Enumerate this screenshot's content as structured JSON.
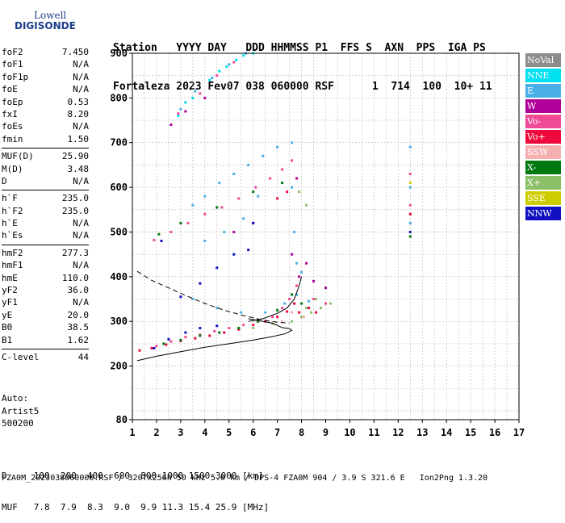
{
  "logo": {
    "line1": "Lowell",
    "line2": "DIGISONDE"
  },
  "header": {
    "line1": "Station   YYYY DAY   DDD HHMMSS P1  FFS S  AXN  PPS  IGA PS",
    "line2": "Fortaleza 2023 Fev07 038 060000 RSF      1  714  100  10+ 11"
  },
  "params": [
    {
      "group": [
        [
          "foF2",
          "7.450"
        ],
        [
          "foF1",
          "N/A"
        ],
        [
          "foF1p",
          "N/A"
        ],
        [
          "foE",
          "N/A"
        ],
        [
          "foEp",
          "0.53"
        ],
        [
          "fxI",
          "8.20"
        ],
        [
          "foEs",
          "N/A"
        ],
        [
          "fmin",
          "1.50"
        ]
      ]
    },
    {
      "group": [
        [
          "MUF(D)",
          "25.90"
        ],
        [
          "M(D)",
          "3.48"
        ],
        [
          "D",
          "N/A"
        ]
      ]
    },
    {
      "group": [
        [
          "h`F",
          "235.0"
        ],
        [
          "h`F2",
          "235.0"
        ],
        [
          "h`E",
          "N/A"
        ],
        [
          "h`Es",
          "N/A"
        ]
      ]
    },
    {
      "group": [
        [
          "hmF2",
          "277.3"
        ],
        [
          "hmF1",
          "N/A"
        ],
        [
          "hmE",
          "110.0"
        ],
        [
          "yF2",
          "36.0"
        ],
        [
          "yF1",
          "N/A"
        ],
        [
          "yE",
          "20.0"
        ],
        [
          "B0",
          "38.5"
        ],
        [
          "B1",
          "1.62"
        ]
      ]
    },
    {
      "group": [
        [
          "C-level",
          "44"
        ]
      ]
    }
  ],
  "auto": {
    "l1": "Auto:",
    "l2": "Artist5",
    "l3": "500200"
  },
  "legend": [
    {
      "label": "NoVal",
      "color": "#8c8c8c"
    },
    {
      "label": "NNE",
      "color": "#00e0f0"
    },
    {
      "label": "E",
      "color": "#4aaee8"
    },
    {
      "label": "W",
      "color": "#b0009a"
    },
    {
      "label": "Vo-",
      "color": "#f04a96"
    },
    {
      "label": "Vo+",
      "color": "#ee0a3c"
    },
    {
      "label": "SSW",
      "color": "#f4b0b0"
    },
    {
      "label": "X-",
      "color": "#007a10"
    },
    {
      "label": "X+",
      "color": "#8cc068"
    },
    {
      "label": "SSE",
      "color": "#cccc00"
    },
    {
      "label": "NNW",
      "color": "#1010c0"
    }
  ],
  "chart_data": {
    "type": "scatter",
    "xlim": [
      1,
      17
    ],
    "ylim": [
      80,
      900
    ],
    "x_ticks": [
      1,
      2,
      3,
      4,
      5,
      6,
      7,
      8,
      9,
      10,
      11,
      12,
      13,
      14,
      15,
      16,
      17
    ],
    "y_ticks": [
      80,
      200,
      300,
      400,
      500,
      600,
      700,
      800,
      900
    ],
    "grid": true,
    "series": [
      {
        "name": "NNE",
        "color": "#00e0f0",
        "points": [
          [
            2.9,
            760
          ],
          [
            3.5,
            800
          ],
          [
            4.2,
            840
          ],
          [
            4.9,
            870
          ],
          [
            5.6,
            895
          ],
          [
            3.2,
            790
          ],
          [
            4.6,
            860
          ],
          [
            5.3,
            885
          ],
          [
            6.0,
            900
          ]
        ]
      },
      {
        "name": "E",
        "color": "#4aaee8",
        "points": [
          [
            3.0,
            775
          ],
          [
            3.6,
            815
          ],
          [
            4.3,
            845
          ],
          [
            5.0,
            875
          ],
          [
            5.7,
            900
          ],
          [
            3.5,
            560
          ],
          [
            4.0,
            580
          ],
          [
            4.6,
            610
          ],
          [
            5.2,
            630
          ],
          [
            5.8,
            650
          ],
          [
            6.4,
            670
          ],
          [
            7.0,
            690
          ],
          [
            7.6,
            700
          ],
          [
            7.6,
            600
          ],
          [
            7.7,
            500
          ],
          [
            7.8,
            430
          ],
          [
            8.0,
            410
          ],
          [
            3.5,
            350
          ],
          [
            4.5,
            330
          ],
          [
            5.5,
            320
          ],
          [
            6.5,
            320
          ],
          [
            7.3,
            340
          ],
          [
            7.8,
            360
          ],
          [
            8.3,
            345
          ],
          [
            9.0,
            340
          ],
          [
            4.0,
            480
          ],
          [
            4.8,
            500
          ],
          [
            5.6,
            530
          ],
          [
            6.2,
            580
          ],
          [
            12.5,
            690
          ],
          [
            12.5,
            600
          ],
          [
            12.5,
            520
          ]
        ]
      },
      {
        "name": "W",
        "color": "#b0009a",
        "points": [
          [
            2.6,
            740
          ],
          [
            3.2,
            770
          ],
          [
            4.0,
            800
          ],
          [
            7.6,
            450
          ],
          [
            7.9,
            400
          ],
          [
            8.5,
            390
          ],
          [
            9.0,
            375
          ],
          [
            8.2,
            430
          ],
          [
            7.8,
            620
          ],
          [
            5.2,
            500
          ],
          [
            6.0,
            520
          ]
        ]
      },
      {
        "name": "Vo-",
        "color": "#f04a96",
        "points": [
          [
            2.9,
            765
          ],
          [
            3.8,
            810
          ],
          [
            4.5,
            850
          ],
          [
            5.2,
            880
          ],
          [
            1.9,
            482
          ],
          [
            2.6,
            500
          ],
          [
            3.3,
            520
          ],
          [
            4.0,
            540
          ],
          [
            4.7,
            555
          ],
          [
            5.4,
            575
          ],
          [
            6.1,
            600
          ],
          [
            6.7,
            620
          ],
          [
            7.2,
            640
          ],
          [
            7.6,
            660
          ],
          [
            2.0,
            245
          ],
          [
            2.6,
            255
          ],
          [
            3.2,
            265
          ],
          [
            3.8,
            270
          ],
          [
            4.4,
            278
          ],
          [
            5.0,
            285
          ],
          [
            5.6,
            292
          ],
          [
            6.2,
            300
          ],
          [
            6.8,
            310
          ],
          [
            7.2,
            330
          ],
          [
            7.5,
            350
          ],
          [
            7.8,
            380
          ],
          [
            8.5,
            350
          ],
          [
            9.0,
            340
          ],
          [
            12.5,
            630
          ],
          [
            12.5,
            560
          ]
        ]
      },
      {
        "name": "Vo+",
        "color": "#ee0a3c",
        "points": [
          [
            1.3,
            235
          ],
          [
            1.8,
            240
          ],
          [
            2.4,
            248
          ],
          [
            3.0,
            256
          ],
          [
            3.6,
            262
          ],
          [
            4.2,
            268
          ],
          [
            4.8,
            275
          ],
          [
            5.4,
            282
          ],
          [
            6.0,
            292
          ],
          [
            6.5,
            300
          ],
          [
            7.0,
            310
          ],
          [
            7.4,
            322
          ],
          [
            7.7,
            340
          ],
          [
            7.9,
            320
          ],
          [
            8.3,
            330
          ],
          [
            8.6,
            320
          ],
          [
            7.0,
            575
          ],
          [
            7.4,
            590
          ],
          [
            12.5,
            540
          ]
        ]
      },
      {
        "name": "SSW",
        "color": "#f4b0b0",
        "points": [
          [
            7.2,
            300
          ],
          [
            7.6,
            320
          ],
          [
            8.1,
            310
          ]
        ]
      },
      {
        "name": "X-",
        "color": "#007a10",
        "points": [
          [
            2.3,
            250
          ],
          [
            3.0,
            258
          ],
          [
            3.8,
            268
          ],
          [
            4.6,
            275
          ],
          [
            5.4,
            285
          ],
          [
            6.2,
            300
          ],
          [
            7.0,
            325
          ],
          [
            7.6,
            360
          ],
          [
            8.0,
            340
          ],
          [
            2.1,
            495
          ],
          [
            3.0,
            520
          ],
          [
            4.5,
            555
          ],
          [
            6.0,
            590
          ],
          [
            7.2,
            610
          ],
          [
            12.5,
            490
          ]
        ]
      },
      {
        "name": "X+",
        "color": "#8cc068",
        "points": [
          [
            7.6,
            300
          ],
          [
            8.0,
            310
          ],
          [
            8.4,
            320
          ],
          [
            8.8,
            330
          ],
          [
            9.2,
            340
          ],
          [
            8.2,
            330
          ],
          [
            8.6,
            350
          ],
          [
            6.0,
            285
          ],
          [
            6.8,
            295
          ],
          [
            7.9,
            590
          ],
          [
            8.2,
            560
          ]
        ]
      },
      {
        "name": "SSE",
        "color": "#cccc00",
        "points": [
          [
            12.5,
            610
          ]
        ]
      },
      {
        "name": "NNW",
        "color": "#1010c0",
        "points": [
          [
            1.9,
            240
          ],
          [
            2.5,
            260
          ],
          [
            3.2,
            275
          ],
          [
            3.8,
            285
          ],
          [
            4.5,
            290
          ],
          [
            3.0,
            355
          ],
          [
            3.8,
            385
          ],
          [
            4.5,
            420
          ],
          [
            5.2,
            450
          ],
          [
            5.8,
            460
          ],
          [
            2.2,
            480
          ],
          [
            6.0,
            520
          ],
          [
            12.5,
            500
          ]
        ]
      }
    ],
    "curves": [
      {
        "style": "solid",
        "points": [
          [
            1.2,
            212
          ],
          [
            2,
            222
          ],
          [
            3,
            232
          ],
          [
            4,
            242
          ],
          [
            5,
            250
          ],
          [
            6,
            258
          ],
          [
            6.8,
            266
          ],
          [
            7.3,
            272
          ],
          [
            7.6,
            280
          ],
          [
            7.5,
            284
          ],
          [
            7.2,
            286
          ],
          [
            6.8,
            296
          ],
          [
            6.4,
            300
          ],
          [
            6.0,
            304
          ],
          [
            5.8,
            306
          ]
        ]
      },
      {
        "style": "dashed",
        "points": [
          [
            1.2,
            412
          ],
          [
            1.8,
            392
          ],
          [
            2.5,
            375
          ],
          [
            3.2,
            358
          ],
          [
            4.0,
            340
          ],
          [
            4.8,
            325
          ],
          [
            5.6,
            313
          ],
          [
            6.4,
            303
          ],
          [
            7.0,
            298
          ],
          [
            7.5,
            296
          ]
        ]
      },
      {
        "style": "solid",
        "points": [
          [
            5.8,
            300
          ],
          [
            6.4,
            306
          ],
          [
            7.0,
            318
          ],
          [
            7.4,
            330
          ],
          [
            7.7,
            350
          ],
          [
            7.9,
            380
          ],
          [
            8.0,
            400
          ]
        ]
      }
    ]
  },
  "footer": {
    "d_label": "D",
    "d_values": "100  200  400  600  800 1000 1500 3000 [km]",
    "muf_label": "MUF",
    "muf_values": "7.8  7.9  8.3  9.0  9.9 11.3 15.4 25.9 [MHz]",
    "file_line": "FZA0M_2023038060000.RSF / 320fx256h 50 kHz 5.0 km / DPS-4 FZA0M 904 / 3.9 S 321.6 E   Ion2Png 1.3.20"
  }
}
